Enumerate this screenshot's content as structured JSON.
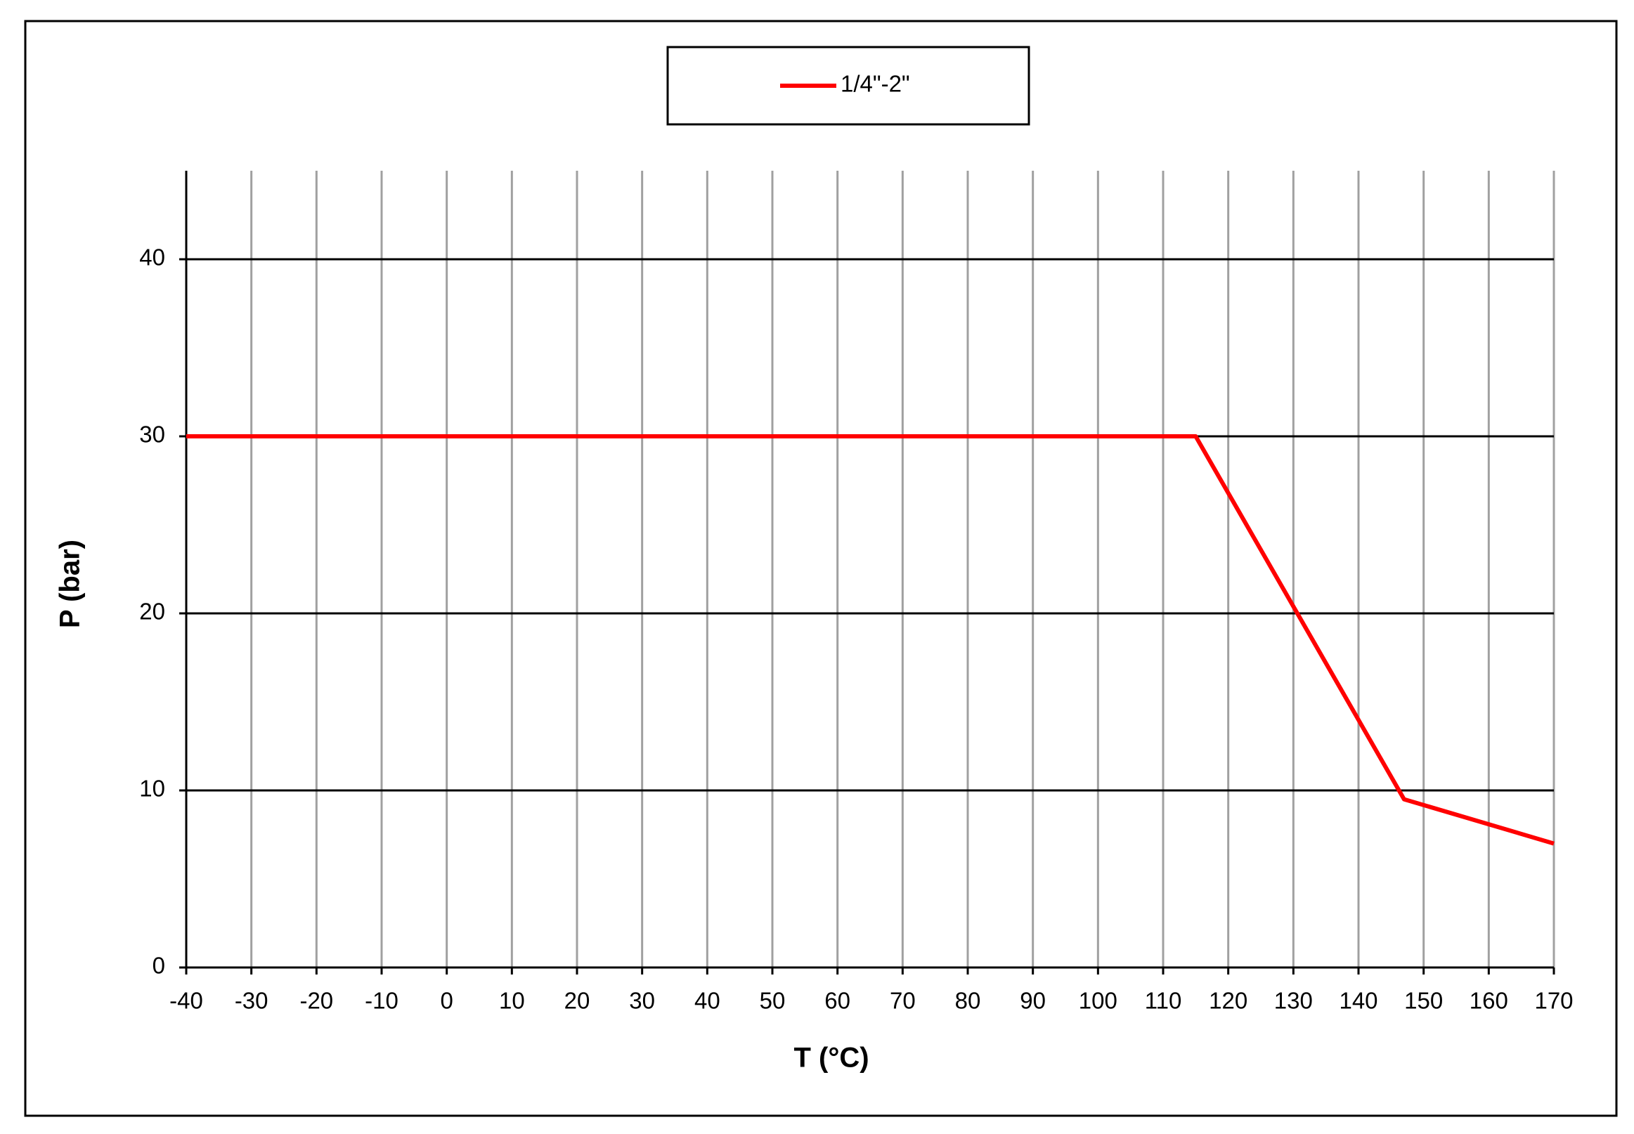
{
  "chart_data": {
    "type": "line",
    "x_label": "T (°C)",
    "y_label": "P (bar)",
    "x": [
      -40,
      115,
      147,
      170
    ],
    "series": [
      {
        "name": "1/4\"-2\"",
        "color": "#ff0000",
        "values": [
          30,
          30,
          9.5,
          7
        ]
      }
    ],
    "xlim": [
      -40,
      170
    ],
    "xticks": [
      -40,
      -30,
      -20,
      -10,
      0,
      10,
      20,
      30,
      40,
      50,
      60,
      70,
      80,
      90,
      100,
      110,
      120,
      130,
      140,
      150,
      160,
      170
    ],
    "ylim": [
      0,
      45
    ],
    "yticks": [
      0,
      10,
      20,
      30,
      40
    ],
    "grid": true,
    "legend": "top"
  }
}
